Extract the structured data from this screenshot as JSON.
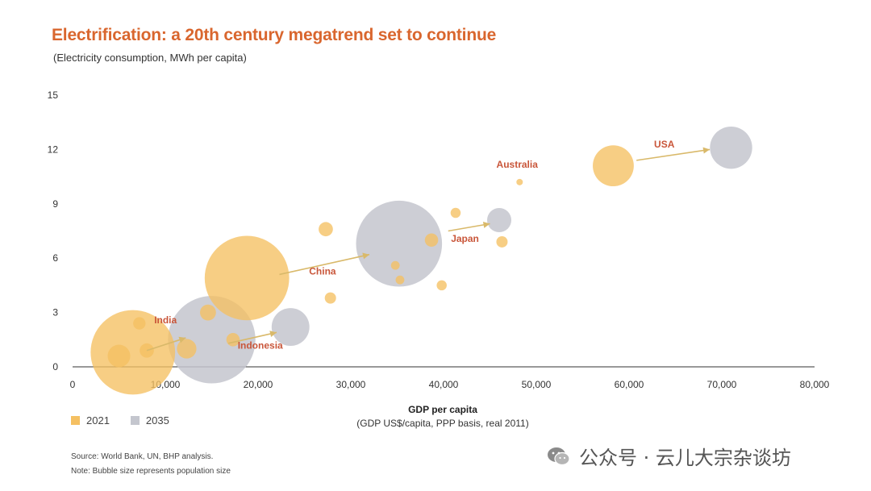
{
  "header": {
    "title": "Electrification: a 20th century megatrend set to continue",
    "subtitle": "(Electricity consumption, MWh per capita)"
  },
  "legend": {
    "items": [
      {
        "label": "2021",
        "color": "#f5c062"
      },
      {
        "label": "2035",
        "color": "#c4c6ce"
      }
    ]
  },
  "notes": {
    "source": "Source: World Bank, UN, BHP analysis.",
    "note": "Note: Bubble size represents population size"
  },
  "watermark": {
    "text": "公众号 · 云儿大宗杂谈坊",
    "icon": "wechat-icon"
  },
  "chart_data": {
    "type": "scatter",
    "title": "Electrification: a 20th century megatrend set to continue",
    "subtitle": "(Electricity consumption, MWh per capita)",
    "xlabel": "GDP per capita",
    "xlabel_sub": "(GDP US$/capita, PPP basis, real 2011)",
    "ylabel": "",
    "xlim": [
      0,
      80000
    ],
    "ylim": [
      0,
      15
    ],
    "x_ticks": [
      0,
      10000,
      20000,
      30000,
      40000,
      50000,
      60000,
      70000,
      80000
    ],
    "x_tick_labels": [
      "0",
      "10,000",
      "20,000",
      "30,000",
      "40,000",
      "50,000",
      "60,000",
      "70,000",
      "80,000"
    ],
    "y_ticks": [
      0,
      3,
      6,
      9,
      12,
      15
    ],
    "y_tick_labels": [
      "0",
      "3",
      "6",
      "9",
      "12",
      "15"
    ],
    "grid": false,
    "legend_position": "bottom-left",
    "bubble_size_meaning": "population size",
    "series": [
      {
        "name": "2021",
        "color": "#f5c062",
        "points": [
          {
            "x": 6500,
            "y": 0.8,
            "size": 1400
          },
          {
            "x": 5000,
            "y": 0.6,
            "size": 100
          },
          {
            "x": 7200,
            "y": 2.4,
            "size": 30
          },
          {
            "x": 8000,
            "y": 0.9,
            "size": 40
          },
          {
            "x": 12300,
            "y": 1.0,
            "size": 75
          },
          {
            "x": 14600,
            "y": 3.0,
            "size": 50
          },
          {
            "x": 17300,
            "y": 1.5,
            "size": 35
          },
          {
            "x": 18800,
            "y": 4.9,
            "size": 1400
          },
          {
            "x": 27300,
            "y": 7.6,
            "size": 40
          },
          {
            "x": 27800,
            "y": 3.8,
            "size": 25
          },
          {
            "x": 34800,
            "y": 5.6,
            "size": 15
          },
          {
            "x": 35300,
            "y": 4.8,
            "size": 15
          },
          {
            "x": 38700,
            "y": 7.0,
            "size": 35
          },
          {
            "x": 39800,
            "y": 4.5,
            "size": 20
          },
          {
            "x": 41300,
            "y": 8.5,
            "size": 20
          },
          {
            "x": 46300,
            "y": 6.9,
            "size": 25
          },
          {
            "x": 48200,
            "y": 10.2,
            "size": 5
          },
          {
            "x": 58300,
            "y": 11.1,
            "size": 330
          }
        ]
      },
      {
        "name": "2035",
        "color": "#c4c6ce",
        "points": [
          {
            "x": 15000,
            "y": 1.5,
            "size": 1500
          },
          {
            "x": 23500,
            "y": 2.2,
            "size": 280
          },
          {
            "x": 35200,
            "y": 6.8,
            "size": 1450
          },
          {
            "x": 46000,
            "y": 8.1,
            "size": 115
          },
          {
            "x": 71000,
            "y": 12.1,
            "size": 350
          }
        ]
      }
    ],
    "arrows": [
      {
        "label": "India",
        "from": [
          8000,
          0.9
        ],
        "to": [
          12200,
          1.6
        ]
      },
      {
        "label": "Indonesia",
        "from": [
          16800,
          1.3
        ],
        "to": [
          22000,
          1.9
        ]
      },
      {
        "label": "China",
        "from": [
          22300,
          5.1
        ],
        "to": [
          32000,
          6.2
        ]
      },
      {
        "label": "Japan",
        "from": [
          40500,
          7.5
        ],
        "to": [
          45000,
          7.9
        ]
      },
      {
        "label": "USA",
        "from": [
          60800,
          11.4
        ],
        "to": [
          68700,
          12.0
        ]
      }
    ],
    "annotations": [
      {
        "text": "India",
        "x": 8800,
        "y": 2.4
      },
      {
        "text": "Indonesia",
        "x": 17800,
        "y": 1.0
      },
      {
        "text": "China",
        "x": 25500,
        "y": 5.1
      },
      {
        "text": "Japan",
        "x": 40800,
        "y": 6.9
      },
      {
        "text": "Australia",
        "x": 45700,
        "y": 11.0
      },
      {
        "text": "USA",
        "x": 62700,
        "y": 12.1
      }
    ]
  }
}
